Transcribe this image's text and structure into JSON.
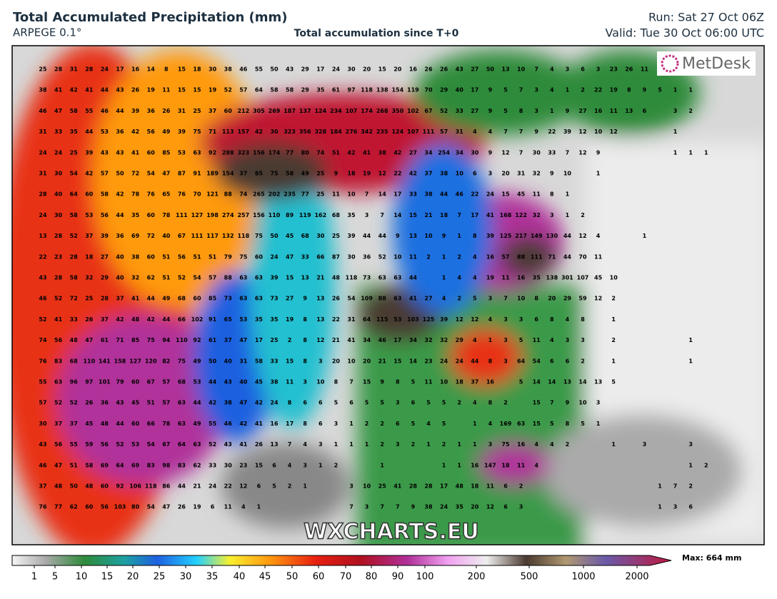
{
  "header": {
    "title": "Total Accumulated Precipitation (mm)",
    "model": "ARPEGE 0.1°",
    "subtitle": "Total accumulation since T+0",
    "run": "Run: Sat 27 Oct 06Z",
    "valid": "Valid: Tue 30 Oct 06:00 UTC"
  },
  "map": {
    "logo": "MetDesk",
    "watermark": "WXCHARTS.EU",
    "grid": [
      [
        25,
        28,
        31,
        28,
        24,
        17,
        16,
        14,
        8,
        15,
        18,
        30,
        38,
        46,
        55,
        50,
        43,
        29,
        17,
        24,
        30,
        20,
        15,
        20,
        16,
        26,
        26,
        43,
        27,
        50,
        13,
        10,
        7,
        4,
        3,
        6,
        3,
        23,
        26,
        11
      ],
      [
        38,
        41,
        42,
        41,
        44,
        43,
        26,
        19,
        11,
        15,
        15,
        19,
        52,
        57,
        64,
        58,
        58,
        29,
        35,
        61,
        97,
        118,
        138,
        154,
        119,
        70,
        29,
        40,
        17,
        9,
        5,
        7,
        3,
        4,
        1,
        2,
        22,
        19,
        8,
        9,
        5,
        1,
        1
      ],
      [
        46,
        47,
        58,
        55,
        46,
        44,
        39,
        36,
        26,
        31,
        25,
        37,
        60,
        212,
        305,
        269,
        187,
        137,
        124,
        234,
        107,
        174,
        268,
        350,
        102,
        67,
        52,
        33,
        27,
        9,
        5,
        8,
        3,
        1,
        9,
        27,
        16,
        11,
        13,
        6,
        null,
        3,
        2
      ],
      [
        31,
        33,
        35,
        44,
        53,
        36,
        42,
        56,
        49,
        39,
        75,
        71,
        113,
        157,
        42,
        30,
        323,
        356,
        328,
        184,
        276,
        342,
        235,
        124,
        107,
        111,
        57,
        31,
        4,
        4,
        7,
        7,
        9,
        22,
        39,
        12,
        10,
        12,
        null,
        null,
        null,
        1
      ],
      [
        24,
        24,
        25,
        39,
        43,
        43,
        41,
        60,
        85,
        53,
        63,
        92,
        288,
        323,
        156,
        174,
        77,
        80,
        74,
        51,
        42,
        41,
        38,
        42,
        27,
        34,
        254,
        34,
        30,
        9,
        12,
        7,
        30,
        33,
        7,
        12,
        9,
        null,
        null,
        null,
        null,
        1,
        1,
        1
      ],
      [
        31,
        30,
        54,
        42,
        57,
        50,
        72,
        54,
        47,
        87,
        91,
        189,
        154,
        37,
        85,
        75,
        58,
        49,
        25,
        9,
        18,
        19,
        12,
        22,
        42,
        37,
        38,
        10,
        6,
        3,
        20,
        31,
        32,
        9,
        10,
        null,
        1
      ],
      [
        28,
        40,
        64,
        60,
        58,
        42,
        78,
        76,
        65,
        76,
        70,
        121,
        88,
        74,
        265,
        202,
        235,
        77,
        25,
        11,
        10,
        7,
        14,
        17,
        33,
        38,
        44,
        46,
        22,
        24,
        15,
        45,
        11,
        8,
        1
      ],
      [
        24,
        30,
        58,
        53,
        56,
        44,
        35,
        60,
        78,
        111,
        127,
        198,
        274,
        257,
        156,
        110,
        89,
        119,
        162,
        68,
        35,
        3,
        7,
        14,
        15,
        21,
        18,
        7,
        17,
        41,
        168,
        122,
        32,
        3,
        1,
        2
      ],
      [
        13,
        28,
        52,
        37,
        39,
        36,
        69,
        72,
        40,
        67,
        111,
        117,
        132,
        118,
        75,
        50,
        45,
        68,
        30,
        25,
        39,
        44,
        44,
        9,
        13,
        10,
        9,
        1,
        8,
        39,
        125,
        217,
        149,
        130,
        44,
        12,
        4,
        null,
        null,
        1
      ],
      [
        22,
        23,
        28,
        18,
        27,
        40,
        38,
        60,
        51,
        56,
        51,
        51,
        79,
        75,
        60,
        24,
        47,
        33,
        66,
        87,
        30,
        36,
        52,
        10,
        11,
        2,
        1,
        2,
        4,
        16,
        57,
        88,
        111,
        71,
        44,
        70,
        11
      ],
      [
        43,
        28,
        58,
        32,
        29,
        40,
        32,
        62,
        51,
        52,
        54,
        57,
        88,
        63,
        63,
        39,
        15,
        13,
        21,
        48,
        118,
        73,
        63,
        63,
        44,
        null,
        1,
        4,
        4,
        19,
        11,
        16,
        35,
        138,
        301,
        107,
        45,
        10
      ],
      [
        46,
        52,
        72,
        25,
        28,
        37,
        41,
        44,
        49,
        68,
        60,
        85,
        73,
        63,
        63,
        73,
        27,
        9,
        13,
        26,
        54,
        109,
        88,
        63,
        41,
        27,
        4,
        2,
        5,
        3,
        7,
        10,
        8,
        20,
        29,
        59,
        12,
        2
      ],
      [
        52,
        41,
        33,
        26,
        37,
        42,
        48,
        42,
        44,
        66,
        102,
        91,
        65,
        53,
        35,
        35,
        19,
        8,
        13,
        22,
        31,
        64,
        115,
        53,
        103,
        125,
        39,
        12,
        12,
        4,
        3,
        3,
        6,
        8,
        4,
        8,
        null,
        1
      ],
      [
        74,
        56,
        48,
        47,
        61,
        71,
        85,
        75,
        94,
        110,
        92,
        61,
        37,
        47,
        17,
        25,
        2,
        8,
        12,
        21,
        41,
        34,
        46,
        17,
        34,
        32,
        32,
        29,
        4,
        1,
        3,
        5,
        11,
        4,
        3,
        3,
        null,
        2,
        null,
        null,
        null,
        null,
        1
      ],
      [
        76,
        83,
        68,
        110,
        141,
        158,
        127,
        120,
        82,
        75,
        49,
        50,
        40,
        31,
        58,
        33,
        15,
        8,
        3,
        20,
        10,
        20,
        21,
        15,
        14,
        23,
        24,
        24,
        44,
        8,
        3,
        64,
        54,
        6,
        6,
        2,
        null,
        1,
        null,
        null,
        null,
        null,
        1
      ],
      [
        55,
        63,
        96,
        97,
        101,
        79,
        60,
        67,
        57,
        68,
        53,
        44,
        43,
        40,
        45,
        38,
        11,
        3,
        10,
        8,
        7,
        15,
        9,
        8,
        5,
        11,
        10,
        18,
        37,
        16,
        null,
        5,
        14,
        14,
        13,
        14,
        13,
        5
      ],
      [
        57,
        52,
        52,
        26,
        36,
        43,
        45,
        51,
        57,
        63,
        44,
        42,
        38,
        47,
        42,
        24,
        8,
        6,
        6,
        5,
        6,
        5,
        5,
        3,
        6,
        5,
        5,
        2,
        4,
        8,
        2,
        null,
        15,
        7,
        9,
        10,
        3
      ],
      [
        30,
        37,
        37,
        45,
        48,
        44,
        60,
        66,
        78,
        63,
        49,
        55,
        46,
        42,
        41,
        16,
        17,
        8,
        6,
        3,
        1,
        2,
        2,
        6,
        5,
        4,
        5,
        null,
        1,
        4,
        169,
        63,
        15,
        5,
        8,
        5,
        1
      ],
      [
        43,
        56,
        55,
        59,
        56,
        52,
        53,
        54,
        67,
        64,
        63,
        52,
        43,
        41,
        26,
        13,
        7,
        4,
        3,
        1,
        1,
        1,
        2,
        3,
        2,
        1,
        2,
        1,
        1,
        3,
        75,
        16,
        4,
        4,
        2,
        null,
        null,
        1,
        null,
        3,
        null,
        null,
        3
      ],
      [
        46,
        47,
        51,
        58,
        69,
        64,
        69,
        83,
        98,
        83,
        62,
        33,
        30,
        23,
        15,
        6,
        4,
        3,
        1,
        2,
        null,
        null,
        1,
        null,
        null,
        null,
        1,
        1,
        16,
        147,
        18,
        11,
        4,
        null,
        null,
        null,
        null,
        null,
        null,
        null,
        null,
        null,
        1,
        2
      ],
      [
        37,
        48,
        50,
        48,
        60,
        92,
        106,
        118,
        86,
        44,
        21,
        24,
        22,
        12,
        6,
        5,
        2,
        1,
        null,
        null,
        3,
        10,
        25,
        41,
        28,
        28,
        17,
        48,
        18,
        11,
        6,
        2,
        null,
        null,
        null,
        null,
        null,
        null,
        null,
        null,
        1,
        7,
        2
      ],
      [
        76,
        77,
        62,
        60,
        56,
        103,
        80,
        54,
        47,
        26,
        19,
        6,
        11,
        4,
        1,
        null,
        null,
        null,
        null,
        null,
        7,
        3,
        7,
        7,
        9,
        38,
        24,
        35,
        20,
        12,
        6,
        3,
        null,
        null,
        null,
        null,
        null,
        null,
        null,
        null,
        1,
        3,
        6
      ]
    ]
  },
  "legend": {
    "ticks": [
      1,
      5,
      10,
      15,
      20,
      25,
      30,
      35,
      40,
      45,
      50,
      60,
      70,
      80,
      90,
      100,
      200,
      500,
      1000,
      2000
    ],
    "max": "Max: 664 mm"
  }
}
